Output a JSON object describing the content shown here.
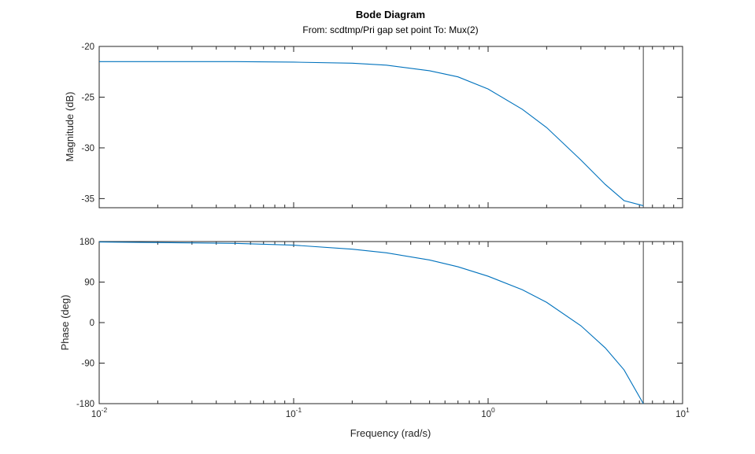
{
  "chart_data": {
    "type": "line",
    "title": "Bode Diagram",
    "subtitle": "From: scdtmp/Pri gap set point  To: Mux(2)",
    "xlabel": "Frequency (rad/s)",
    "xscale": "log",
    "xlim": [
      0.01,
      10
    ],
    "x_ticks": [
      {
        "base": "10",
        "exp": "-2",
        "value": 0.01
      },
      {
        "base": "10",
        "exp": "-1",
        "value": 0.1
      },
      {
        "base": "10",
        "exp": "0",
        "value": 1
      },
      {
        "base": "10",
        "exp": "1",
        "value": 10
      }
    ],
    "marker_frequency": 6.283,
    "subplots": [
      {
        "name": "magnitude",
        "ylabel": "Magnitude (dB)",
        "ylim": [
          -35.9,
          -20
        ],
        "yticks": [
          "-20",
          "-25",
          "-30",
          "-35"
        ],
        "series": [
          {
            "name": "Magnitude",
            "x": [
              0.01,
              0.05,
              0.1,
              0.2,
              0.3,
              0.5,
              0.7,
              1,
              1.5,
              2,
              3,
              4,
              5,
              6.283
            ],
            "y": [
              -21.5,
              -21.5,
              -21.55,
              -21.65,
              -21.85,
              -22.4,
              -23.0,
              -24.2,
              -26.2,
              -28.0,
              -31.2,
              -33.6,
              -35.2,
              -35.7
            ]
          }
        ]
      },
      {
        "name": "phase",
        "ylabel": "Phase (deg)",
        "ylim": [
          -180,
          180
        ],
        "yticks": [
          "180",
          "90",
          "0",
          "-90",
          "-180"
        ],
        "series": [
          {
            "name": "Phase",
            "x": [
              0.01,
              0.05,
              0.1,
              0.2,
              0.3,
              0.5,
              0.7,
              1,
              1.5,
              2,
              3,
              4,
              5,
              6.283
            ],
            "y": [
              179,
              176,
              172,
              163,
              155,
              139,
              124,
              103,
              73,
              45,
              -7,
              -56,
              -105,
              -180
            ]
          }
        ]
      }
    ]
  }
}
